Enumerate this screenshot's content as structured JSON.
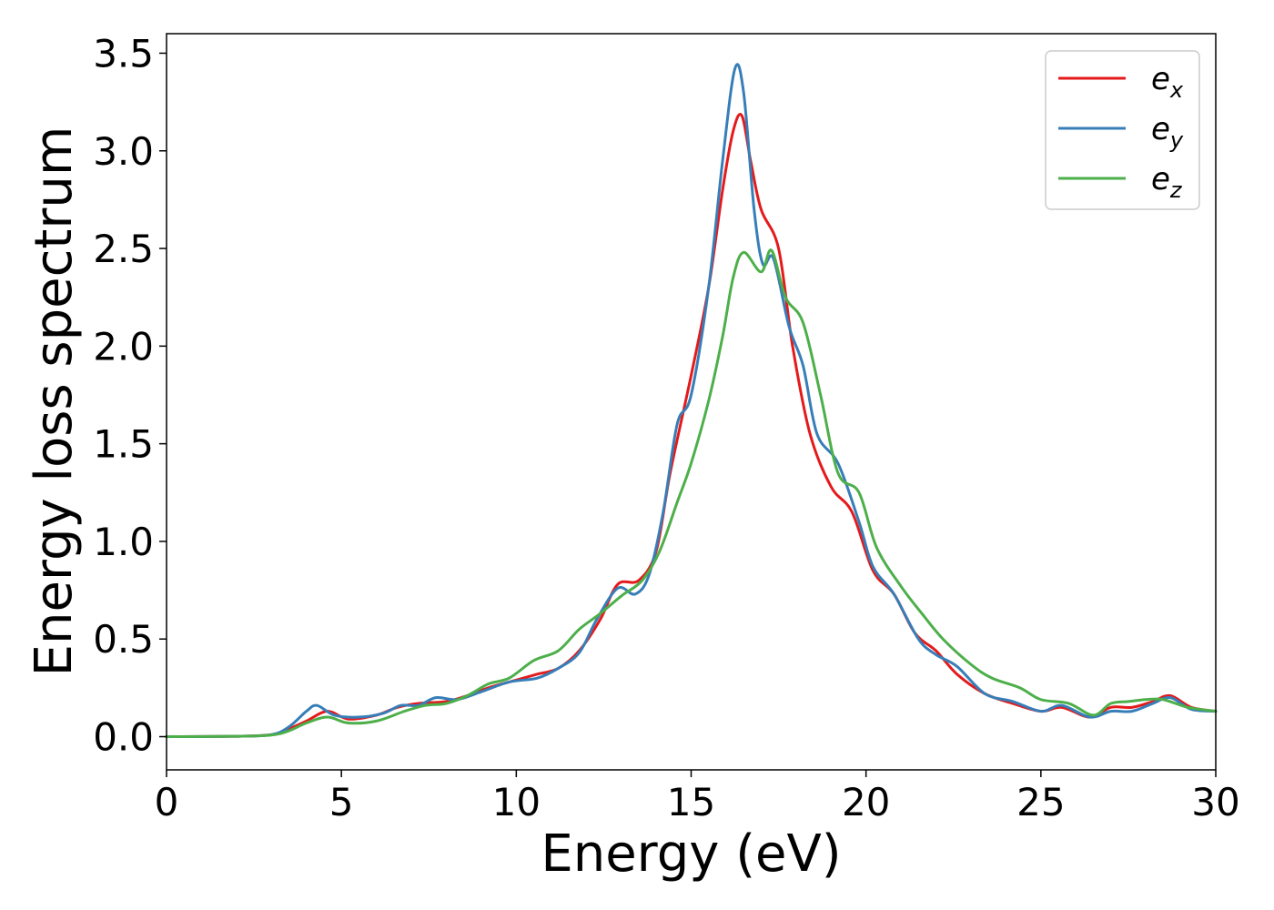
{
  "chart_data": {
    "type": "line",
    "title": "",
    "xlabel": "Energy (eV)",
    "ylabel": "Energy loss spectrum",
    "xlim": [
      0,
      30
    ],
    "ylim": [
      -0.17,
      3.6
    ],
    "xticks": [
      {
        "value": 0,
        "label": "0"
      },
      {
        "value": 5,
        "label": "5"
      },
      {
        "value": 10,
        "label": "10"
      },
      {
        "value": 15,
        "label": "15"
      },
      {
        "value": 20,
        "label": "20"
      },
      {
        "value": 25,
        "label": "25"
      },
      {
        "value": 30,
        "label": "30"
      }
    ],
    "yticks": [
      {
        "value": 0.0,
        "label": "0.0"
      },
      {
        "value": 0.5,
        "label": "0.5"
      },
      {
        "value": 1.0,
        "label": "1.0"
      },
      {
        "value": 1.5,
        "label": "1.5"
      },
      {
        "value": 2.0,
        "label": "2.0"
      },
      {
        "value": 2.5,
        "label": "2.5"
      },
      {
        "value": 3.0,
        "label": "3.0"
      },
      {
        "value": 3.5,
        "label": "3.5"
      }
    ],
    "grid": false,
    "legend_position": "top-right",
    "series": [
      {
        "name": "e",
        "subscript": "x",
        "color": "#e41a1c",
        "points": [
          [
            0,
            0
          ],
          [
            2,
            0.002
          ],
          [
            3,
            0.01
          ],
          [
            3.5,
            0.04
          ],
          [
            4,
            0.08
          ],
          [
            4.6,
            0.13
          ],
          [
            5.2,
            0.09
          ],
          [
            6,
            0.11
          ],
          [
            6.6,
            0.15
          ],
          [
            7.2,
            0.17
          ],
          [
            8,
            0.18
          ],
          [
            8.6,
            0.21
          ],
          [
            9.2,
            0.25
          ],
          [
            10,
            0.29
          ],
          [
            10.6,
            0.32
          ],
          [
            11.2,
            0.35
          ],
          [
            11.8,
            0.44
          ],
          [
            12.4,
            0.6
          ],
          [
            12.9,
            0.78
          ],
          [
            13.5,
            0.8
          ],
          [
            14,
            0.95
          ],
          [
            14.4,
            1.35
          ],
          [
            15,
            1.85
          ],
          [
            15.5,
            2.3
          ],
          [
            15.9,
            2.8
          ],
          [
            16.2,
            3.1
          ],
          [
            16.45,
            3.18
          ],
          [
            16.7,
            2.95
          ],
          [
            17,
            2.7
          ],
          [
            17.5,
            2.5
          ],
          [
            17.9,
            2.0
          ],
          [
            18.4,
            1.55
          ],
          [
            19,
            1.28
          ],
          [
            19.6,
            1.15
          ],
          [
            20.2,
            0.85
          ],
          [
            20.8,
            0.73
          ],
          [
            21.4,
            0.53
          ],
          [
            22,
            0.44
          ],
          [
            22.6,
            0.32
          ],
          [
            23.4,
            0.22
          ],
          [
            24.2,
            0.17
          ],
          [
            25,
            0.13
          ],
          [
            25.6,
            0.15
          ],
          [
            26.4,
            0.1
          ],
          [
            27,
            0.15
          ],
          [
            27.6,
            0.15
          ],
          [
            28.2,
            0.18
          ],
          [
            28.7,
            0.21
          ],
          [
            29.3,
            0.15
          ],
          [
            30,
            0.13
          ]
        ]
      },
      {
        "name": "e",
        "subscript": "y",
        "color": "#377eb8",
        "points": [
          [
            0,
            0
          ],
          [
            2,
            0.002
          ],
          [
            3,
            0.01
          ],
          [
            3.5,
            0.05
          ],
          [
            4,
            0.13
          ],
          [
            4.3,
            0.16
          ],
          [
            4.8,
            0.11
          ],
          [
            5.5,
            0.1
          ],
          [
            6.2,
            0.12
          ],
          [
            6.7,
            0.16
          ],
          [
            7.2,
            0.16
          ],
          [
            7.7,
            0.2
          ],
          [
            8.3,
            0.19
          ],
          [
            9,
            0.23
          ],
          [
            9.8,
            0.28
          ],
          [
            10.6,
            0.3
          ],
          [
            11.2,
            0.35
          ],
          [
            11.8,
            0.43
          ],
          [
            12.3,
            0.6
          ],
          [
            12.9,
            0.76
          ],
          [
            13.4,
            0.73
          ],
          [
            13.8,
            0.83
          ],
          [
            14.2,
            1.15
          ],
          [
            14.6,
            1.6
          ],
          [
            15,
            1.75
          ],
          [
            15.5,
            2.3
          ],
          [
            15.9,
            2.95
          ],
          [
            16.25,
            3.42
          ],
          [
            16.5,
            3.3
          ],
          [
            16.8,
            2.7
          ],
          [
            17.05,
            2.42
          ],
          [
            17.35,
            2.45
          ],
          [
            17.8,
            2.1
          ],
          [
            18.2,
            1.9
          ],
          [
            18.6,
            1.55
          ],
          [
            19.2,
            1.4
          ],
          [
            19.8,
            1.1
          ],
          [
            20.2,
            0.87
          ],
          [
            20.8,
            0.73
          ],
          [
            21.5,
            0.5
          ],
          [
            22,
            0.42
          ],
          [
            22.6,
            0.36
          ],
          [
            23.4,
            0.22
          ],
          [
            24.2,
            0.18
          ],
          [
            25,
            0.13
          ],
          [
            25.6,
            0.16
          ],
          [
            26.4,
            0.1
          ],
          [
            27,
            0.13
          ],
          [
            27.6,
            0.13
          ],
          [
            28.2,
            0.17
          ],
          [
            28.7,
            0.2
          ],
          [
            29.3,
            0.14
          ],
          [
            30,
            0.13
          ]
        ]
      },
      {
        "name": "e",
        "subscript": "z",
        "color": "#4daf4a",
        "points": [
          [
            0,
            0
          ],
          [
            2,
            0.002
          ],
          [
            3,
            0.008
          ],
          [
            3.5,
            0.03
          ],
          [
            4,
            0.07
          ],
          [
            4.6,
            0.1
          ],
          [
            5.2,
            0.07
          ],
          [
            6,
            0.08
          ],
          [
            6.8,
            0.13
          ],
          [
            7.4,
            0.16
          ],
          [
            8,
            0.17
          ],
          [
            8.6,
            0.21
          ],
          [
            9.2,
            0.27
          ],
          [
            9.8,
            0.3
          ],
          [
            10.5,
            0.39
          ],
          [
            11.2,
            0.44
          ],
          [
            11.8,
            0.55
          ],
          [
            12.4,
            0.63
          ],
          [
            13,
            0.72
          ],
          [
            13.6,
            0.8
          ],
          [
            14.1,
            0.95
          ],
          [
            14.6,
            1.2
          ],
          [
            15,
            1.4
          ],
          [
            15.5,
            1.72
          ],
          [
            15.9,
            2.05
          ],
          [
            16.2,
            2.35
          ],
          [
            16.5,
            2.48
          ],
          [
            17,
            2.38
          ],
          [
            17.3,
            2.49
          ],
          [
            17.7,
            2.25
          ],
          [
            18.2,
            2.12
          ],
          [
            18.7,
            1.75
          ],
          [
            19.2,
            1.35
          ],
          [
            19.8,
            1.25
          ],
          [
            20.3,
            0.97
          ],
          [
            21,
            0.77
          ],
          [
            21.6,
            0.63
          ],
          [
            22.2,
            0.5
          ],
          [
            23,
            0.37
          ],
          [
            23.6,
            0.3
          ],
          [
            24.4,
            0.25
          ],
          [
            25,
            0.19
          ],
          [
            25.8,
            0.17
          ],
          [
            26.5,
            0.11
          ],
          [
            27,
            0.17
          ],
          [
            27.5,
            0.18
          ],
          [
            28,
            0.19
          ],
          [
            28.5,
            0.19
          ],
          [
            29.2,
            0.15
          ],
          [
            30,
            0.13
          ]
        ]
      }
    ]
  }
}
